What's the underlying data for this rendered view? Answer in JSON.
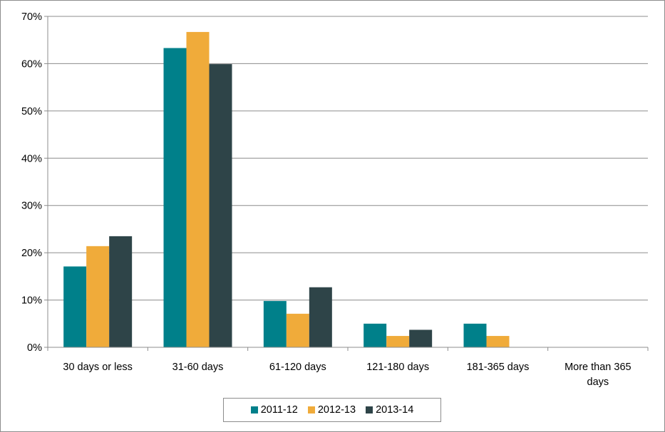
{
  "chart_data": {
    "type": "bar",
    "categories": [
      "30 days or less",
      "31-60 days",
      "61-120 days",
      "121-180 days",
      "181-365 days",
      "More than 365 days"
    ],
    "category_lines": [
      [
        "30 days or less"
      ],
      [
        "31-60 days"
      ],
      [
        "61-120 days"
      ],
      [
        "121-180 days"
      ],
      [
        "181-365 days"
      ],
      [
        "More than 365",
        "days"
      ]
    ],
    "series": [
      {
        "name": "2011-12",
        "color": "#00808a",
        "values": [
          17.1,
          63.3,
          9.8,
          5.0,
          5.0,
          0
        ]
      },
      {
        "name": "2012-13",
        "color": "#f0ab3a",
        "values": [
          21.4,
          66.7,
          7.1,
          2.4,
          2.4,
          0
        ]
      },
      {
        "name": "2013-14",
        "color": "#2e4448",
        "values": [
          23.5,
          59.9,
          12.7,
          3.7,
          0,
          0
        ]
      }
    ],
    "y_ticks": [
      "0%",
      "10%",
      "20%",
      "30%",
      "40%",
      "50%",
      "60%",
      "70%"
    ],
    "ylim": [
      0,
      70
    ],
    "grid": true,
    "legend_position": "bottom"
  }
}
